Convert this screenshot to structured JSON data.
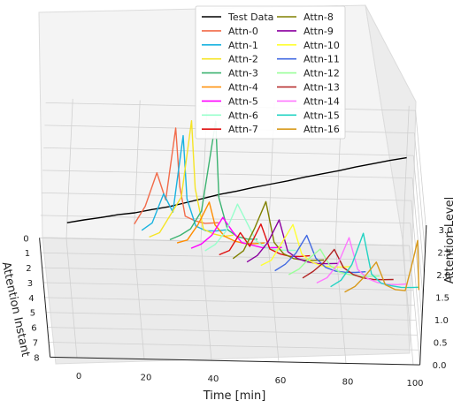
{
  "chart_data": {
    "type": "line",
    "projection": "3d",
    "title": "",
    "xlabel": "Time [min]",
    "ylabel": "Attention Instant",
    "zlabel": "Attention Level",
    "x_ticks": [
      "0",
      "20",
      "40",
      "60",
      "80",
      "100"
    ],
    "y_ticks": [
      "0",
      "1",
      "2",
      "3",
      "4",
      "5",
      "6",
      "7",
      "8"
    ],
    "z_ticks": [
      "0.0",
      "0.5",
      "1.0",
      "1.5",
      "2.0",
      "2.5",
      "3.0"
    ],
    "xlim": [
      -8,
      102
    ],
    "ylim": [
      0,
      8
    ],
    "zlim": [
      0,
      3.1
    ],
    "grid": true,
    "legend_position": "top-center",
    "legend_columns": 2,
    "test_data": {
      "name": "Test Data",
      "color": "#000000",
      "y": 0,
      "x": [
        0,
        5,
        10,
        15,
        20,
        25,
        30,
        35,
        40,
        45,
        50,
        55,
        60,
        65,
        70,
        75,
        80,
        85,
        90,
        95,
        100
      ],
      "z": [
        0.35,
        0.42,
        0.48,
        0.55,
        0.6,
        0.68,
        0.75,
        0.85,
        0.95,
        1.05,
        1.13,
        1.22,
        1.3,
        1.38,
        1.47,
        1.55,
        1.63,
        1.72,
        1.8,
        1.88,
        1.95
      ]
    },
    "series": [
      {
        "name": "Attn-0",
        "color": "#f26b4a",
        "y": 0,
        "x": [
          20,
          23,
          26,
          29,
          31,
          33,
          35,
          38,
          41,
          45
        ],
        "z": [
          0.35,
          0.75,
          1.5,
          0.9,
          2.5,
          1.2,
          0.55,
          0.45,
          0.4,
          0.42
        ]
      },
      {
        "name": "Attn-1",
        "color": "#1ab3e0",
        "y": 0.5,
        "x": [
          22,
          25,
          28,
          31,
          33,
          35,
          38,
          41,
          44,
          47
        ],
        "z": [
          0.38,
          0.55,
          1.2,
          0.8,
          2.5,
          1.1,
          0.5,
          0.4,
          0.4,
          0.43
        ]
      },
      {
        "name": "Attn-2",
        "color": "#f5e425",
        "y": 1.0,
        "x": [
          24,
          27,
          30,
          33,
          35,
          37,
          40,
          43,
          46,
          49
        ],
        "z": [
          0.4,
          0.5,
          0.9,
          1.3,
          3.0,
          1.5,
          0.6,
          0.5,
          0.45,
          0.48
        ]
      },
      {
        "name": "Attn-3",
        "color": "#3cb371",
        "y": 1.3,
        "x": [
          30,
          33,
          36,
          39,
          42,
          44,
          47,
          50,
          53,
          56
        ],
        "z": [
          0.45,
          0.55,
          0.7,
          1.1,
          3.1,
          1.4,
          0.7,
          0.55,
          0.5,
          0.5
        ]
      },
      {
        "name": "Attn-4",
        "color": "#ff8c00",
        "y": 1.6,
        "x": [
          32,
          35,
          38,
          41,
          43,
          46,
          49,
          52,
          55,
          58
        ],
        "z": [
          0.48,
          0.55,
          0.9,
          1.4,
          0.9,
          0.65,
          0.55,
          0.5,
          0.5,
          0.52
        ]
      },
      {
        "name": "Attn-5",
        "color": "#ff00ff",
        "y": 2.0,
        "x": [
          36,
          39,
          42,
          45,
          48,
          51,
          54,
          57,
          60,
          63
        ],
        "z": [
          0.5,
          0.6,
          0.8,
          1.2,
          0.9,
          0.65,
          0.6,
          0.55,
          0.55,
          0.56
        ]
      },
      {
        "name": "Attn-6",
        "color": "#98ffcc",
        "y": 2.3,
        "x": [
          40,
          43,
          46,
          49,
          52,
          55,
          58,
          61,
          64,
          67
        ],
        "z": [
          0.55,
          0.7,
          1.0,
          1.6,
          1.2,
          0.8,
          0.65,
          0.6,
          0.6,
          0.6
        ]
      },
      {
        "name": "Attn-7",
        "color": "#e01010",
        "y": 2.7,
        "x": [
          44,
          47,
          50,
          53,
          56,
          59,
          62,
          65,
          68,
          71
        ],
        "z": [
          0.6,
          0.7,
          1.1,
          0.8,
          1.3,
          0.75,
          0.65,
          0.6,
          0.6,
          0.62
        ]
      },
      {
        "name": "Attn-8",
        "color": "#808000",
        "y": 3.0,
        "x": [
          48,
          51,
          54,
          57,
          60,
          63,
          66,
          69,
          72,
          75
        ],
        "z": [
          0.62,
          0.8,
          1.3,
          1.9,
          1.0,
          0.75,
          0.65,
          0.62,
          0.62,
          0.63
        ]
      },
      {
        "name": "Attn-9",
        "color": "#8b00a0",
        "y": 3.3,
        "x": [
          52,
          55,
          58,
          61,
          64,
          67,
          70,
          73,
          76,
          79
        ],
        "z": [
          0.65,
          0.8,
          1.1,
          1.6,
          0.9,
          0.75,
          0.68,
          0.65,
          0.65,
          0.66
        ]
      },
      {
        "name": "Attn-10",
        "color": "#ffff33",
        "y": 3.6,
        "x": [
          56,
          59,
          62,
          65,
          68,
          71,
          74,
          77,
          80,
          83
        ],
        "z": [
          0.68,
          0.8,
          1.2,
          1.6,
          0.95,
          0.78,
          0.7,
          0.68,
          0.68,
          0.7
        ]
      },
      {
        "name": "Attn-11",
        "color": "#4169e1",
        "y": 4.0,
        "x": [
          60,
          63,
          66,
          69,
          72,
          75,
          78,
          81,
          84,
          87
        ],
        "z": [
          0.7,
          0.85,
          1.1,
          1.5,
          1.0,
          0.8,
          0.72,
          0.7,
          0.7,
          0.72
        ]
      },
      {
        "name": "Attn-12",
        "color": "#99ff99",
        "y": 4.3,
        "x": [
          64,
          67,
          70,
          73,
          76,
          79,
          82,
          85,
          88,
          91
        ],
        "z": [
          0.72,
          0.85,
          1.1,
          1.3,
          0.95,
          0.8,
          0.75,
          0.72,
          0.72,
          0.73
        ]
      },
      {
        "name": "Attn-13",
        "color": "#b22222",
        "y": 4.6,
        "x": [
          68,
          71,
          74,
          77,
          80,
          83,
          86,
          89,
          92,
          95
        ],
        "z": [
          0.75,
          0.9,
          1.1,
          1.4,
          1.0,
          0.85,
          0.78,
          0.75,
          0.75,
          0.76
        ]
      },
      {
        "name": "Attn-14",
        "color": "#ff77ff",
        "y": 5.0,
        "x": [
          72,
          75,
          78,
          81,
          84,
          87,
          90,
          93,
          96,
          99
        ],
        "z": [
          0.78,
          0.9,
          1.2,
          1.8,
          1.1,
          0.9,
          0.82,
          0.78,
          0.78,
          0.8
        ]
      },
      {
        "name": "Attn-15",
        "color": "#22d3c3",
        "y": 5.3,
        "x": [
          76,
          79,
          82,
          85,
          88,
          91,
          94,
          97,
          100,
          102
        ],
        "z": [
          0.8,
          0.95,
          1.3,
          2.0,
          1.1,
          0.9,
          0.85,
          0.82,
          0.82,
          0.83
        ]
      },
      {
        "name": "Attn-16",
        "color": "#d89a1c",
        "y": 5.7,
        "x": [
          80,
          83,
          86,
          89,
          92,
          95,
          98,
          100,
          101,
          102
        ],
        "z": [
          0.82,
          0.95,
          1.2,
          1.5,
          1.0,
          0.9,
          0.88,
          1.6,
          2.0,
          0.9
        ]
      }
    ]
  }
}
